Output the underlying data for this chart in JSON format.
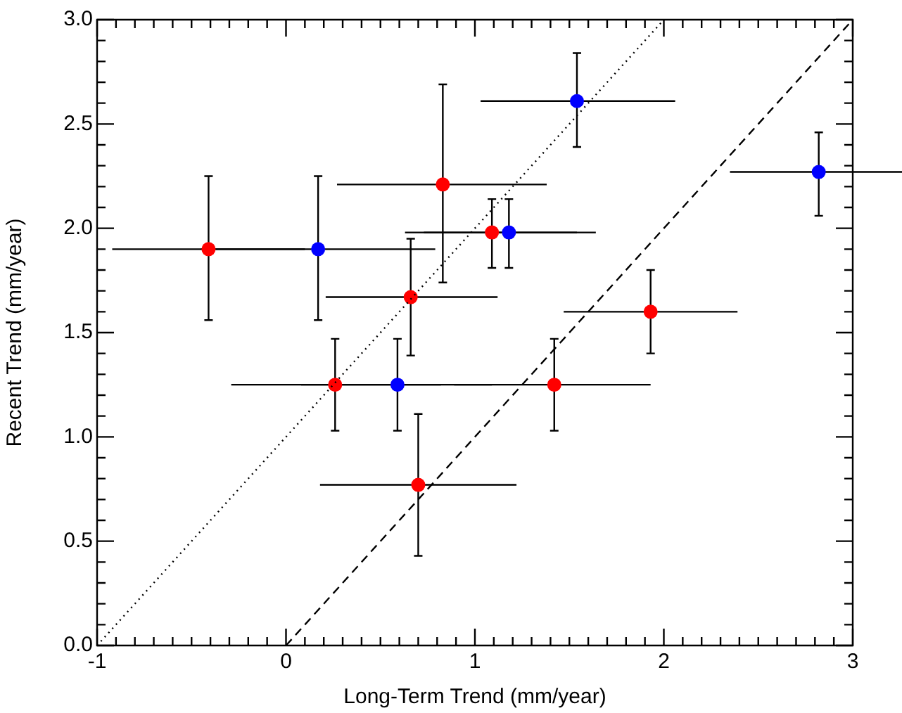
{
  "chart_data": {
    "type": "scatter",
    "xlabel": "Long-Term Trend (mm/year)",
    "ylabel": "Recent Trend (mm/year)",
    "xlim": [
      -1,
      3
    ],
    "ylim": [
      0,
      3
    ],
    "xticks": [
      -1,
      {
        "value": -0.9,
        "label": null
      },
      {
        "value": -0.8,
        "label": null
      },
      {
        "value": -0.7,
        "label": null
      },
      {
        "value": -0.6,
        "label": null
      },
      {
        "value": -0.5,
        "label": null
      },
      {
        "value": -0.4,
        "label": null
      },
      {
        "value": -0.3,
        "label": null
      },
      {
        "value": -0.2,
        "label": null
      },
      {
        "value": -0.1,
        "label": null
      },
      0,
      {
        "value": 0.1,
        "label": null
      },
      {
        "value": 0.2,
        "label": null
      },
      {
        "value": 0.3,
        "label": null
      },
      {
        "value": 0.4,
        "label": null
      },
      {
        "value": 0.5,
        "label": null
      },
      {
        "value": 0.6,
        "label": null
      },
      {
        "value": 0.7,
        "label": null
      },
      {
        "value": 0.8,
        "label": null
      },
      {
        "value": 0.9,
        "label": null
      },
      1,
      {
        "value": 1.1,
        "label": null
      },
      {
        "value": 1.2,
        "label": null
      },
      {
        "value": 1.3,
        "label": null
      },
      {
        "value": 1.4,
        "label": null
      },
      {
        "value": 1.5,
        "label": null
      },
      {
        "value": 1.6,
        "label": null
      },
      {
        "value": 1.7,
        "label": null
      },
      {
        "value": 1.8,
        "label": null
      },
      {
        "value": 1.9,
        "label": null
      },
      2,
      {
        "value": 2.1,
        "label": null
      },
      {
        "value": 2.2,
        "label": null
      },
      {
        "value": 2.3,
        "label": null
      },
      {
        "value": 2.4,
        "label": null
      },
      {
        "value": 2.5,
        "label": null
      },
      {
        "value": 2.6,
        "label": null
      },
      {
        "value": 2.7,
        "label": null
      },
      {
        "value": 2.8,
        "label": null
      },
      {
        "value": 2.9,
        "label": null
      },
      3
    ],
    "yticks": [
      {
        "value": 0,
        "label": "0.0"
      },
      {
        "value": 0.1,
        "label": null
      },
      {
        "value": 0.2,
        "label": null
      },
      {
        "value": 0.3,
        "label": null
      },
      {
        "value": 0.4,
        "label": null
      },
      0.5,
      {
        "value": 0.6,
        "label": null
      },
      {
        "value": 0.7,
        "label": null
      },
      {
        "value": 0.8,
        "label": null
      },
      {
        "value": 0.9,
        "label": null
      },
      {
        "value": 1,
        "label": "1.0"
      },
      {
        "value": 1.1,
        "label": null
      },
      {
        "value": 1.2,
        "label": null
      },
      {
        "value": 1.3,
        "label": null
      },
      {
        "value": 1.4,
        "label": null
      },
      1.5,
      {
        "value": 1.6,
        "label": null
      },
      {
        "value": 1.7,
        "label": null
      },
      {
        "value": 1.8,
        "label": null
      },
      {
        "value": 1.9,
        "label": null
      },
      {
        "value": 2,
        "label": "2.0"
      },
      {
        "value": 2.1,
        "label": null
      },
      {
        "value": 2.2,
        "label": null
      },
      {
        "value": 2.3,
        "label": null
      },
      {
        "value": 2.4,
        "label": null
      },
      2.5,
      {
        "value": 2.6,
        "label": null
      },
      {
        "value": 2.7,
        "label": null
      },
      {
        "value": 2.8,
        "label": null
      },
      {
        "value": 2.9,
        "label": null
      },
      {
        "value": 3,
        "label": "3.0"
      }
    ],
    "marker": "circle",
    "grid": false,
    "legend": false,
    "series": [
      {
        "type": "scatter",
        "color": "#ff0000",
        "x": [
          -0.41,
          0.83,
          1.09,
          0.66,
          0.26,
          0.7,
          1.42,
          1.93
        ],
        "values": [
          1.9,
          2.21,
          1.98,
          1.67,
          1.25,
          0.77,
          1.25,
          1.6
        ],
        "errors": [
          [
            1.56,
            2.25
          ],
          [
            1.74,
            2.69
          ],
          [
            1.81,
            2.14
          ],
          [
            1.39,
            1.95
          ],
          [
            1.03,
            1.47
          ],
          [
            0.43,
            1.11
          ],
          [
            1.03,
            1.47
          ],
          [
            1.4,
            1.8
          ]
        ],
        "xerrors": [
          [
            -0.92,
            0.1
          ],
          [
            0.27,
            1.38
          ],
          [
            0.63,
            1.54
          ],
          [
            0.21,
            1.12
          ],
          [
            -0.29,
            0.82
          ],
          [
            0.18,
            1.22
          ],
          [
            0.89,
            1.93
          ],
          [
            1.47,
            2.39
          ]
        ]
      },
      {
        "type": "scatter",
        "color": "#0000ff",
        "x": [
          0.17,
          1.18,
          0.59,
          1.54,
          2.82
        ],
        "values": [
          1.9,
          1.98,
          1.25,
          2.61,
          2.27
        ],
        "errors": [
          [
            1.56,
            2.25
          ],
          [
            1.81,
            2.14
          ],
          [
            1.03,
            1.47
          ],
          [
            2.39,
            2.84
          ],
          [
            2.06,
            2.46
          ]
        ],
        "xerrors": [
          [
            -0.45,
            0.79
          ],
          [
            0.73,
            1.64
          ],
          [
            0.08,
            1.09
          ],
          [
            1.03,
            2.06
          ],
          [
            2.35,
            3.29
          ]
        ]
      },
      {
        "type": "line",
        "color": "#000000",
        "line_style": "dotted",
        "marker": "none",
        "x": [
          -1,
          2
        ],
        "values": [
          0,
          3
        ]
      },
      {
        "type": "line",
        "color": "#000000",
        "line_style": "dashed",
        "marker": "none",
        "x": [
          0,
          3
        ],
        "values": [
          0,
          3
        ]
      }
    ]
  }
}
